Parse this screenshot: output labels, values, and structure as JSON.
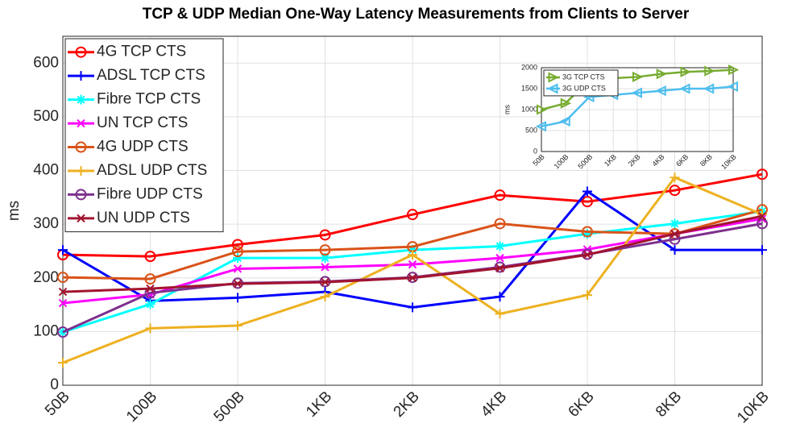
{
  "chart_data": [
    {
      "type": "line",
      "title": "TCP & UDP Median One-Way Latency Measurements from Clients to Server",
      "y_label": "ms",
      "categories": [
        "50B",
        "100B",
        "500B",
        "1KB",
        "2KB",
        "4KB",
        "6KB",
        "8KB",
        "10KB"
      ],
      "ylim": [
        0,
        650
      ],
      "yticks": [
        0,
        100,
        200,
        300,
        400,
        500,
        600
      ],
      "grid": true,
      "legend": "upper left",
      "series": [
        {
          "name": "4G TCP CTS",
          "color": "#ff0000",
          "marker": "o",
          "values": [
            243,
            240,
            262,
            280,
            318,
            354,
            342,
            363,
            393
          ]
        },
        {
          "name": "ADSL TCP CTS",
          "color": "#0000ff",
          "marker": "+",
          "values": [
            252,
            157,
            163,
            174,
            145,
            165,
            361,
            252,
            252
          ]
        },
        {
          "name": "Fibre TCP CTS",
          "color": "#00ffff",
          "marker": "*",
          "values": [
            99,
            151,
            237,
            237,
            252,
            259,
            282,
            301,
            324
          ]
        },
        {
          "name": "UN TCP CTS",
          "color": "#ff00ff",
          "marker": "x",
          "values": [
            153,
            169,
            217,
            220,
            225,
            237,
            253,
            282,
            310
          ]
        },
        {
          "name": "4G UDP CTS",
          "color": "#d95319",
          "marker": "o",
          "values": [
            201,
            198,
            249,
            252,
            258,
            301,
            286,
            282,
            327
          ]
        },
        {
          "name": "ADSL UDP CTS",
          "color": "#edb120",
          "marker": "+",
          "values": [
            42,
            106,
            111,
            165,
            243,
            133,
            168,
            387,
            318
          ]
        },
        {
          "name": "Fibre UDP CTS",
          "color": "#7e2f8e",
          "marker": "o",
          "values": [
            99,
            172,
            190,
            193,
            201,
            220,
            244,
            272,
            301
          ]
        },
        {
          "name": "UN UDP CTS",
          "color": "#a2142f",
          "marker": "x",
          "values": [
            174,
            180,
            189,
            192,
            200,
            218,
            243,
            282,
            315
          ]
        }
      ]
    },
    {
      "type": "line",
      "y_label": "ms",
      "categories": [
        "50B",
        "100B",
        "500B",
        "1KB",
        "2KB",
        "4KB",
        "6KB",
        "8KB",
        "10KB"
      ],
      "ylim": [
        0,
        2000
      ],
      "yticks": [
        0,
        500,
        1000,
        1500,
        2000
      ],
      "grid": true,
      "legend": "upper left",
      "series": [
        {
          "name": "3G TCP CTS",
          "color": "#77ac30",
          "marker": ">",
          "values": [
            1000,
            1150,
            1700,
            1750,
            1780,
            1850,
            1900,
            1920,
            1950
          ]
        },
        {
          "name": "3G UDP CTS",
          "color": "#4dbeee",
          "marker": "<",
          "values": [
            600,
            720,
            1300,
            1350,
            1400,
            1450,
            1500,
            1500,
            1550
          ]
        }
      ]
    }
  ]
}
